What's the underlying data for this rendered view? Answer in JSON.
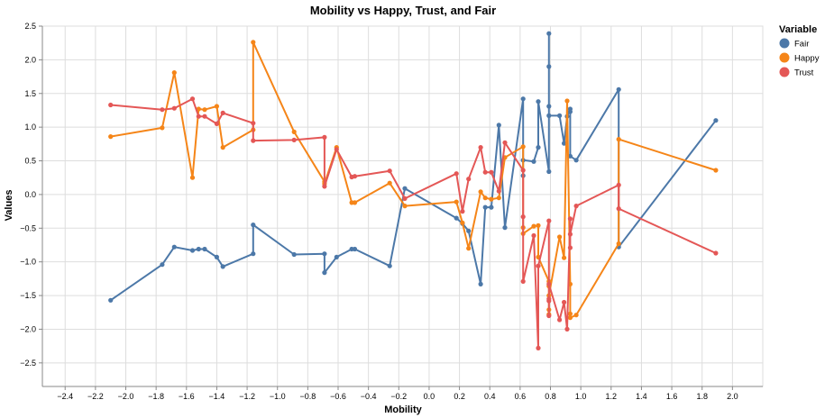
{
  "chart_data": {
    "type": "line",
    "title": "Mobility vs Happy, Trust, and Fair",
    "xlabel": "Mobility",
    "ylabel": "Values",
    "xlim": [
      -2.55,
      2.2
    ],
    "ylim": [
      -2.85,
      2.5
    ],
    "x_ticks": [
      "−2.4",
      "−2.2",
      "−2.0",
      "−1.8",
      "−1.6",
      "−1.4",
      "−1.2",
      "−1.0",
      "−0.8",
      "−0.6",
      "−0.4",
      "−0.2",
      "0.0",
      "0.2",
      "0.4",
      "0.6",
      "0.8",
      "1.0",
      "1.2",
      "1.4",
      "1.6",
      "1.8",
      "2.0"
    ],
    "x_tick_values": [
      -2.4,
      -2.2,
      -2.0,
      -1.8,
      -1.6,
      -1.4,
      -1.2,
      -1.0,
      -0.8,
      -0.6,
      -0.4,
      -0.2,
      0.0,
      0.2,
      0.4,
      0.6,
      0.8,
      1.0,
      1.2,
      1.4,
      1.6,
      1.8,
      2.0
    ],
    "y_ticks": [
      "2.5",
      "2.0",
      "1.5",
      "1.0",
      "0.5",
      "0.0",
      "−0.5",
      "−1.0",
      "−1.5",
      "−2.0",
      "−2.5"
    ],
    "y_tick_values": [
      2.5,
      2.0,
      1.5,
      1.0,
      0.5,
      0.0,
      -0.5,
      -1.0,
      -1.5,
      -2.0,
      -2.5
    ],
    "grid": true,
    "legend": {
      "title": "Variable",
      "placement": "right"
    },
    "series": [
      {
        "name": "Fair",
        "color": "#4c78a8",
        "points": [
          [
            -2.1,
            -1.57
          ],
          [
            -1.76,
            -1.04
          ],
          [
            -1.68,
            -0.78
          ],
          [
            -1.56,
            -0.83
          ],
          [
            -1.52,
            -0.81
          ],
          [
            -1.48,
            -0.81
          ],
          [
            -1.4,
            -0.93
          ],
          [
            -1.36,
            -1.07
          ],
          [
            -1.16,
            -0.88
          ],
          [
            -1.16,
            -0.45
          ],
          [
            -0.89,
            -0.89
          ],
          [
            -0.69,
            -0.88
          ],
          [
            -0.69,
            -1.16
          ],
          [
            -0.61,
            -0.93
          ],
          [
            -0.51,
            -0.81
          ],
          [
            -0.49,
            -0.81
          ],
          [
            -0.26,
            -1.06
          ],
          [
            -0.16,
            0.09
          ],
          [
            0.18,
            -0.35
          ],
          [
            0.22,
            -0.43
          ],
          [
            0.26,
            -0.54
          ],
          [
            0.34,
            -1.33
          ],
          [
            0.37,
            -0.19
          ],
          [
            0.41,
            -0.19
          ],
          [
            0.46,
            1.03
          ],
          [
            0.5,
            -0.49
          ],
          [
            0.62,
            1.42
          ],
          [
            0.62,
            0.28
          ],
          [
            0.62,
            0.51
          ],
          [
            0.69,
            0.49
          ],
          [
            0.72,
            0.7
          ],
          [
            0.72,
            1.38
          ],
          [
            0.79,
            0.34
          ],
          [
            0.79,
            1.31
          ],
          [
            0.79,
            2.39
          ],
          [
            0.79,
            1.9
          ],
          [
            0.79,
            1.17
          ],
          [
            0.86,
            1.17
          ],
          [
            0.89,
            0.76
          ],
          [
            0.91,
            1.16
          ],
          [
            0.93,
            1.27
          ],
          [
            0.93,
            1.23
          ],
          [
            0.93,
            0.57
          ],
          [
            0.97,
            0.51
          ],
          [
            1.25,
            1.56
          ],
          [
            1.25,
            -0.78
          ],
          [
            1.89,
            1.1
          ]
        ]
      },
      {
        "name": "Happy",
        "color": "#f58518",
        "points": [
          [
            -2.1,
            0.86
          ],
          [
            -1.76,
            0.99
          ],
          [
            -1.68,
            1.81
          ],
          [
            -1.56,
            0.25
          ],
          [
            -1.52,
            1.27
          ],
          [
            -1.48,
            1.26
          ],
          [
            -1.4,
            1.31
          ],
          [
            -1.36,
            0.7
          ],
          [
            -1.16,
            0.96
          ],
          [
            -1.16,
            2.26
          ],
          [
            -0.89,
            0.93
          ],
          [
            -0.69,
            0.19
          ],
          [
            -0.69,
            0.16
          ],
          [
            -0.61,
            0.7
          ],
          [
            -0.51,
            -0.12
          ],
          [
            -0.49,
            -0.12
          ],
          [
            -0.26,
            0.17
          ],
          [
            -0.16,
            -0.17
          ],
          [
            0.18,
            -0.11
          ],
          [
            0.22,
            -0.42
          ],
          [
            0.26,
            -0.8
          ],
          [
            0.34,
            0.04
          ],
          [
            0.37,
            -0.05
          ],
          [
            0.41,
            -0.07
          ],
          [
            0.46,
            -0.05
          ],
          [
            0.5,
            0.55
          ],
          [
            0.62,
            0.71
          ],
          [
            0.62,
            -0.49
          ],
          [
            0.62,
            -0.58
          ],
          [
            0.69,
            -0.47
          ],
          [
            0.72,
            -0.46
          ],
          [
            0.72,
            -0.93
          ],
          [
            0.79,
            -1.29
          ],
          [
            0.79,
            -1.36
          ],
          [
            0.79,
            -1.71
          ],
          [
            0.79,
            -1.78
          ],
          [
            0.79,
            -1.5
          ],
          [
            0.86,
            -0.63
          ],
          [
            0.89,
            -0.94
          ],
          [
            0.91,
            1.39
          ],
          [
            0.93,
            -1.33
          ],
          [
            0.93,
            -1.77
          ],
          [
            0.93,
            -1.83
          ],
          [
            0.97,
            -1.79
          ],
          [
            1.25,
            -0.73
          ],
          [
            1.25,
            0.82
          ],
          [
            1.89,
            0.36
          ]
        ]
      },
      {
        "name": "Trust",
        "color": "#e45756",
        "points": [
          [
            -2.1,
            1.33
          ],
          [
            -1.76,
            1.26
          ],
          [
            -1.68,
            1.28
          ],
          [
            -1.56,
            1.42
          ],
          [
            -1.52,
            1.16
          ],
          [
            -1.48,
            1.16
          ],
          [
            -1.4,
            1.05
          ],
          [
            -1.36,
            1.21
          ],
          [
            -1.16,
            1.06
          ],
          [
            -1.16,
            0.8
          ],
          [
            -0.89,
            0.81
          ],
          [
            -0.69,
            0.85
          ],
          [
            -0.69,
            0.12
          ],
          [
            -0.61,
            0.67
          ],
          [
            -0.51,
            0.26
          ],
          [
            -0.49,
            0.27
          ],
          [
            -0.26,
            0.35
          ],
          [
            -0.16,
            -0.06
          ],
          [
            0.18,
            0.31
          ],
          [
            0.22,
            -0.25
          ],
          [
            0.26,
            0.23
          ],
          [
            0.34,
            0.7
          ],
          [
            0.37,
            0.33
          ],
          [
            0.41,
            0.33
          ],
          [
            0.46,
            0.05
          ],
          [
            0.5,
            0.77
          ],
          [
            0.62,
            0.36
          ],
          [
            0.62,
            -0.33
          ],
          [
            0.62,
            -1.29
          ],
          [
            0.69,
            -0.61
          ],
          [
            0.72,
            -2.28
          ],
          [
            0.72,
            -1.06
          ],
          [
            0.79,
            -0.39
          ],
          [
            0.79,
            -1.8
          ],
          [
            0.79,
            -1.58
          ],
          [
            0.79,
            -1.55
          ],
          [
            0.79,
            -1.33
          ],
          [
            0.86,
            -1.86
          ],
          [
            0.89,
            -1.6
          ],
          [
            0.91,
            -2.0
          ],
          [
            0.93,
            -0.36
          ],
          [
            0.93,
            -0.79
          ],
          [
            0.93,
            -0.59
          ],
          [
            0.97,
            -0.17
          ],
          [
            1.25,
            0.14
          ],
          [
            1.25,
            -0.21
          ],
          [
            1.89,
            -0.87
          ]
        ]
      }
    ]
  }
}
